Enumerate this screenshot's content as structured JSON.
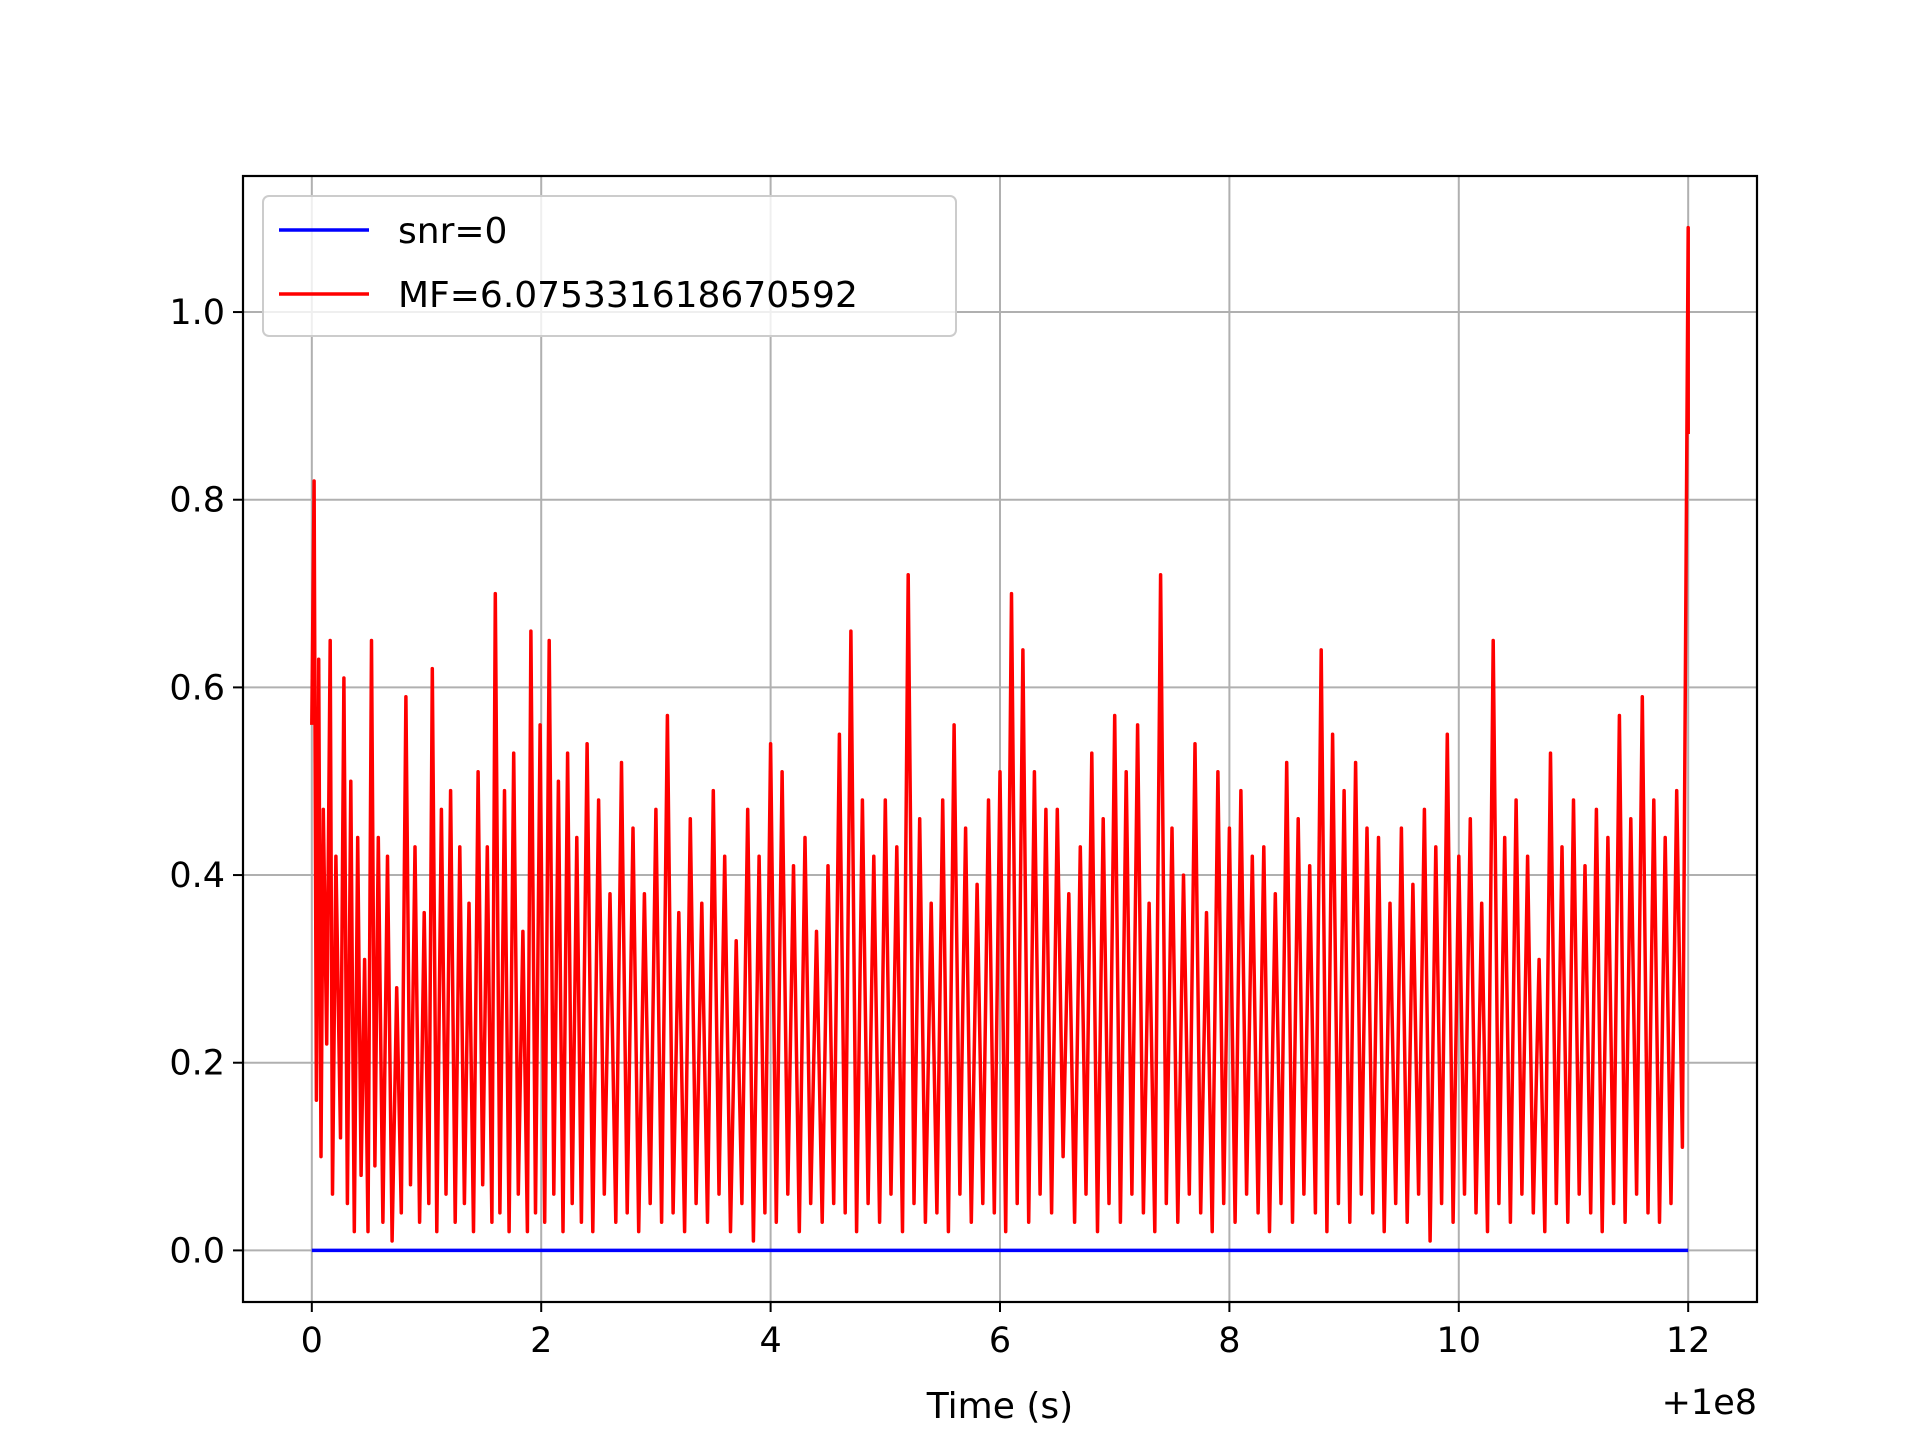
{
  "chart_data": {
    "type": "line",
    "xlabel": "Time (s)",
    "ylabel": "",
    "x_offset_label": "+1e8",
    "xlim": [
      -0.6,
      12.6
    ],
    "ylim": [
      -0.055,
      1.145
    ],
    "x_ticks": [
      0,
      2,
      4,
      6,
      8,
      10,
      12
    ],
    "y_ticks": [
      0.0,
      0.2,
      0.4,
      0.6,
      0.8,
      1.0
    ],
    "x_tick_labels": [
      "0",
      "2",
      "4",
      "6",
      "8",
      "10",
      "12"
    ],
    "y_tick_labels": [
      "0.0",
      "0.2",
      "0.4",
      "0.6",
      "0.8",
      "1.0"
    ],
    "grid": true,
    "legend_position": "top-left",
    "series": [
      {
        "name": "snr=0",
        "color": "#0000ff",
        "points": [
          [
            0,
            0
          ],
          [
            12,
            0
          ]
        ]
      },
      {
        "name": "MF=6.075331618670592",
        "color": "#ff0000",
        "points": [
          [
            0.0,
            0.56
          ],
          [
            0.02,
            0.82
          ],
          [
            0.04,
            0.16
          ],
          [
            0.06,
            0.63
          ],
          [
            0.08,
            0.1
          ],
          [
            0.1,
            0.47
          ],
          [
            0.13,
            0.22
          ],
          [
            0.16,
            0.65
          ],
          [
            0.18,
            0.06
          ],
          [
            0.21,
            0.42
          ],
          [
            0.25,
            0.12
          ],
          [
            0.28,
            0.61
          ],
          [
            0.31,
            0.05
          ],
          [
            0.34,
            0.5
          ],
          [
            0.37,
            0.02
          ],
          [
            0.4,
            0.44
          ],
          [
            0.43,
            0.08
          ],
          [
            0.46,
            0.31
          ],
          [
            0.49,
            0.02
          ],
          [
            0.52,
            0.65
          ],
          [
            0.55,
            0.09
          ],
          [
            0.58,
            0.44
          ],
          [
            0.62,
            0.03
          ],
          [
            0.66,
            0.42
          ],
          [
            0.7,
            0.01
          ],
          [
            0.74,
            0.28
          ],
          [
            0.78,
            0.04
          ],
          [
            0.82,
            0.59
          ],
          [
            0.86,
            0.07
          ],
          [
            0.9,
            0.43
          ],
          [
            0.94,
            0.03
          ],
          [
            0.98,
            0.36
          ],
          [
            1.02,
            0.05
          ],
          [
            1.05,
            0.62
          ],
          [
            1.09,
            0.02
          ],
          [
            1.13,
            0.47
          ],
          [
            1.17,
            0.06
          ],
          [
            1.21,
            0.49
          ],
          [
            1.25,
            0.03
          ],
          [
            1.29,
            0.43
          ],
          [
            1.33,
            0.05
          ],
          [
            1.37,
            0.37
          ],
          [
            1.41,
            0.02
          ],
          [
            1.45,
            0.51
          ],
          [
            1.49,
            0.07
          ],
          [
            1.53,
            0.43
          ],
          [
            1.57,
            0.03
          ],
          [
            1.6,
            0.7
          ],
          [
            1.64,
            0.04
          ],
          [
            1.68,
            0.49
          ],
          [
            1.72,
            0.02
          ],
          [
            1.76,
            0.53
          ],
          [
            1.8,
            0.06
          ],
          [
            1.84,
            0.34
          ],
          [
            1.88,
            0.02
          ],
          [
            1.91,
            0.66
          ],
          [
            1.95,
            0.04
          ],
          [
            1.99,
            0.56
          ],
          [
            2.03,
            0.03
          ],
          [
            2.07,
            0.65
          ],
          [
            2.11,
            0.06
          ],
          [
            2.15,
            0.5
          ],
          [
            2.19,
            0.02
          ],
          [
            2.23,
            0.53
          ],
          [
            2.27,
            0.05
          ],
          [
            2.31,
            0.44
          ],
          [
            2.35,
            0.03
          ],
          [
            2.4,
            0.54
          ],
          [
            2.45,
            0.02
          ],
          [
            2.5,
            0.48
          ],
          [
            2.55,
            0.06
          ],
          [
            2.6,
            0.38
          ],
          [
            2.65,
            0.03
          ],
          [
            2.7,
            0.52
          ],
          [
            2.75,
            0.04
          ],
          [
            2.8,
            0.45
          ],
          [
            2.85,
            0.02
          ],
          [
            2.9,
            0.38
          ],
          [
            2.95,
            0.05
          ],
          [
            3.0,
            0.47
          ],
          [
            3.05,
            0.03
          ],
          [
            3.1,
            0.57
          ],
          [
            3.15,
            0.04
          ],
          [
            3.2,
            0.36
          ],
          [
            3.25,
            0.02
          ],
          [
            3.3,
            0.46
          ],
          [
            3.35,
            0.05
          ],
          [
            3.4,
            0.37
          ],
          [
            3.45,
            0.03
          ],
          [
            3.5,
            0.49
          ],
          [
            3.55,
            0.06
          ],
          [
            3.6,
            0.42
          ],
          [
            3.65,
            0.02
          ],
          [
            3.7,
            0.33
          ],
          [
            3.75,
            0.05
          ],
          [
            3.8,
            0.47
          ],
          [
            3.85,
            0.01
          ],
          [
            3.9,
            0.42
          ],
          [
            3.95,
            0.04
          ],
          [
            4.0,
            0.54
          ],
          [
            4.05,
            0.03
          ],
          [
            4.1,
            0.51
          ],
          [
            4.15,
            0.06
          ],
          [
            4.2,
            0.41
          ],
          [
            4.25,
            0.02
          ],
          [
            4.3,
            0.44
          ],
          [
            4.35,
            0.05
          ],
          [
            4.4,
            0.34
          ],
          [
            4.45,
            0.03
          ],
          [
            4.5,
            0.41
          ],
          [
            4.55,
            0.05
          ],
          [
            4.6,
            0.55
          ],
          [
            4.65,
            0.04
          ],
          [
            4.7,
            0.66
          ],
          [
            4.75,
            0.02
          ],
          [
            4.8,
            0.48
          ],
          [
            4.85,
            0.05
          ],
          [
            4.9,
            0.42
          ],
          [
            4.95,
            0.03
          ],
          [
            5.0,
            0.48
          ],
          [
            5.05,
            0.06
          ],
          [
            5.1,
            0.43
          ],
          [
            5.15,
            0.02
          ],
          [
            5.2,
            0.72
          ],
          [
            5.25,
            0.05
          ],
          [
            5.3,
            0.46
          ],
          [
            5.35,
            0.03
          ],
          [
            5.4,
            0.37
          ],
          [
            5.45,
            0.04
          ],
          [
            5.5,
            0.48
          ],
          [
            5.55,
            0.02
          ],
          [
            5.6,
            0.56
          ],
          [
            5.65,
            0.06
          ],
          [
            5.7,
            0.45
          ],
          [
            5.75,
            0.03
          ],
          [
            5.8,
            0.39
          ],
          [
            5.85,
            0.05
          ],
          [
            5.9,
            0.48
          ],
          [
            5.95,
            0.04
          ],
          [
            6.0,
            0.51
          ],
          [
            6.05,
            0.02
          ],
          [
            6.1,
            0.7
          ],
          [
            6.15,
            0.05
          ],
          [
            6.2,
            0.64
          ],
          [
            6.25,
            0.03
          ],
          [
            6.3,
            0.51
          ],
          [
            6.35,
            0.06
          ],
          [
            6.4,
            0.47
          ],
          [
            6.45,
            0.04
          ],
          [
            6.5,
            0.47
          ],
          [
            6.55,
            0.1
          ],
          [
            6.6,
            0.38
          ],
          [
            6.65,
            0.03
          ],
          [
            6.7,
            0.43
          ],
          [
            6.75,
            0.06
          ],
          [
            6.8,
            0.53
          ],
          [
            6.85,
            0.02
          ],
          [
            6.9,
            0.46
          ],
          [
            6.95,
            0.05
          ],
          [
            7.0,
            0.57
          ],
          [
            7.05,
            0.03
          ],
          [
            7.1,
            0.51
          ],
          [
            7.15,
            0.06
          ],
          [
            7.2,
            0.56
          ],
          [
            7.25,
            0.04
          ],
          [
            7.3,
            0.37
          ],
          [
            7.35,
            0.02
          ],
          [
            7.4,
            0.72
          ],
          [
            7.45,
            0.05
          ],
          [
            7.5,
            0.45
          ],
          [
            7.55,
            0.03
          ],
          [
            7.6,
            0.4
          ],
          [
            7.65,
            0.06
          ],
          [
            7.7,
            0.54
          ],
          [
            7.75,
            0.04
          ],
          [
            7.8,
            0.36
          ],
          [
            7.85,
            0.02
          ],
          [
            7.9,
            0.51
          ],
          [
            7.95,
            0.05
          ],
          [
            8.0,
            0.45
          ],
          [
            8.05,
            0.03
          ],
          [
            8.1,
            0.49
          ],
          [
            8.15,
            0.06
          ],
          [
            8.2,
            0.42
          ],
          [
            8.25,
            0.04
          ],
          [
            8.3,
            0.43
          ],
          [
            8.35,
            0.02
          ],
          [
            8.4,
            0.38
          ],
          [
            8.45,
            0.05
          ],
          [
            8.5,
            0.52
          ],
          [
            8.55,
            0.03
          ],
          [
            8.6,
            0.46
          ],
          [
            8.65,
            0.06
          ],
          [
            8.7,
            0.41
          ],
          [
            8.75,
            0.04
          ],
          [
            8.8,
            0.64
          ],
          [
            8.85,
            0.02
          ],
          [
            8.9,
            0.55
          ],
          [
            8.95,
            0.05
          ],
          [
            9.0,
            0.49
          ],
          [
            9.05,
            0.03
          ],
          [
            9.1,
            0.52
          ],
          [
            9.15,
            0.06
          ],
          [
            9.2,
            0.45
          ],
          [
            9.25,
            0.04
          ],
          [
            9.3,
            0.44
          ],
          [
            9.35,
            0.02
          ],
          [
            9.4,
            0.37
          ],
          [
            9.45,
            0.05
          ],
          [
            9.5,
            0.45
          ],
          [
            9.55,
            0.03
          ],
          [
            9.6,
            0.39
          ],
          [
            9.65,
            0.06
          ],
          [
            9.7,
            0.47
          ],
          [
            9.75,
            0.01
          ],
          [
            9.8,
            0.43
          ],
          [
            9.85,
            0.05
          ],
          [
            9.9,
            0.55
          ],
          [
            9.95,
            0.03
          ],
          [
            10.0,
            0.42
          ],
          [
            10.05,
            0.06
          ],
          [
            10.1,
            0.46
          ],
          [
            10.15,
            0.04
          ],
          [
            10.2,
            0.37
          ],
          [
            10.25,
            0.02
          ],
          [
            10.3,
            0.65
          ],
          [
            10.35,
            0.05
          ],
          [
            10.4,
            0.44
          ],
          [
            10.45,
            0.03
          ],
          [
            10.5,
            0.48
          ],
          [
            10.55,
            0.06
          ],
          [
            10.6,
            0.42
          ],
          [
            10.65,
            0.04
          ],
          [
            10.7,
            0.31
          ],
          [
            10.75,
            0.02
          ],
          [
            10.8,
            0.53
          ],
          [
            10.85,
            0.05
          ],
          [
            10.9,
            0.43
          ],
          [
            10.95,
            0.03
          ],
          [
            11.0,
            0.48
          ],
          [
            11.05,
            0.06
          ],
          [
            11.1,
            0.41
          ],
          [
            11.15,
            0.04
          ],
          [
            11.2,
            0.47
          ],
          [
            11.25,
            0.02
          ],
          [
            11.3,
            0.44
          ],
          [
            11.35,
            0.05
          ],
          [
            11.4,
            0.57
          ],
          [
            11.45,
            0.03
          ],
          [
            11.5,
            0.46
          ],
          [
            11.55,
            0.06
          ],
          [
            11.6,
            0.59
          ],
          [
            11.65,
            0.04
          ],
          [
            11.7,
            0.48
          ],
          [
            11.75,
            0.03
          ],
          [
            11.8,
            0.44
          ],
          [
            11.85,
            0.05
          ],
          [
            11.9,
            0.49
          ],
          [
            11.95,
            0.11
          ],
          [
            12.0,
            1.09
          ],
          [
            12.0,
            0.87
          ]
        ]
      }
    ]
  }
}
